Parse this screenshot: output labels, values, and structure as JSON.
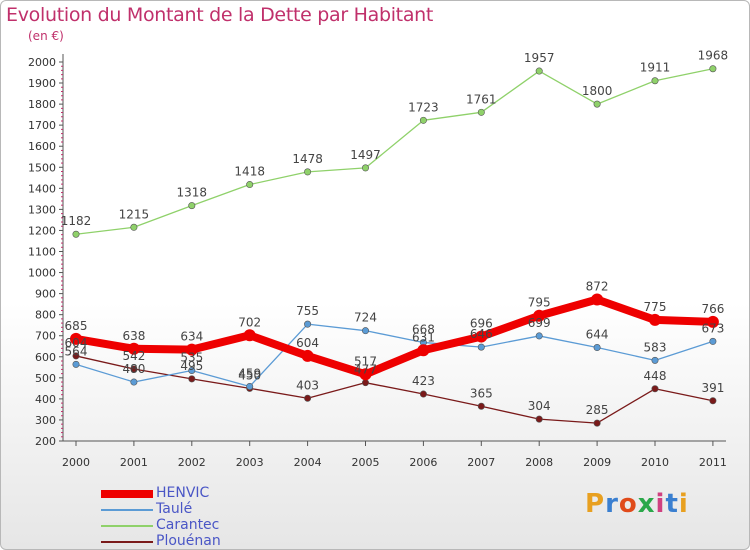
{
  "chart_data": {
    "type": "line",
    "title": "Evolution du Montant de la Dette par Habitant",
    "subtitle": "(en €)",
    "x": [
      "2000",
      "2001",
      "2002",
      "2003",
      "2004",
      "2005",
      "2006",
      "2007",
      "2008",
      "2009",
      "2010",
      "2011"
    ],
    "ylim": [
      200,
      2000
    ],
    "yticks": [
      200,
      300,
      400,
      500,
      600,
      700,
      800,
      900,
      1000,
      1100,
      1200,
      1300,
      1400,
      1500,
      1600,
      1700,
      1800,
      1900,
      2000
    ],
    "grid": false,
    "legend_position": "bottom-left",
    "series": [
      {
        "name": "HENVIC",
        "color": "#ee0000",
        "emphasis": true,
        "values": [
          685,
          638,
          634,
          702,
          604,
          517,
          631,
          696,
          795,
          872,
          775,
          766
        ]
      },
      {
        "name": "Taulé",
        "color": "#5b9bd5",
        "values": [
          564,
          480,
          535,
          459,
          755,
          724,
          668,
          646,
          699,
          644,
          583,
          673
        ]
      },
      {
        "name": "Carantec",
        "color": "#8fd16a",
        "values": [
          1182,
          1215,
          1318,
          1418,
          1478,
          1497,
          1723,
          1761,
          1957,
          1800,
          1911,
          1968
        ]
      },
      {
        "name": "Plouénan",
        "color": "#7a1a1a",
        "values": [
          604,
          542,
          495,
          450,
          403,
          477,
          423,
          365,
          304,
          285,
          448,
          391
        ]
      }
    ],
    "data_labels": {
      "HENVIC": [
        "685",
        "638",
        "634",
        "702",
        "604",
        "517",
        "631",
        "696",
        "795",
        "872",
        "775",
        "766"
      ],
      "Taulé": [
        "564",
        "480",
        "535",
        "459",
        "755",
        "724",
        "668",
        "646",
        "699",
        "644",
        "583",
        "673"
      ],
      "Carantec": [
        "1182",
        "1215",
        "1318",
        "1418",
        "1478",
        "1497",
        "1723",
        "1761",
        "1957",
        "1800",
        "1911",
        "1968"
      ],
      "Plouénan": [
        "604",
        "542",
        "495",
        "450",
        "403",
        "477",
        "423",
        "365",
        "304",
        "285",
        "448",
        "391"
      ]
    }
  },
  "legend": {
    "items": [
      {
        "label": "HENVIC",
        "color": "#ee0000"
      },
      {
        "label": "Taulé",
        "color": "#5b9bd5"
      },
      {
        "label": "Carantec",
        "color": "#8fd16a"
      },
      {
        "label": "Plouénan",
        "color": "#7a1a1a"
      }
    ]
  },
  "logo": {
    "text": "Proxiti"
  }
}
